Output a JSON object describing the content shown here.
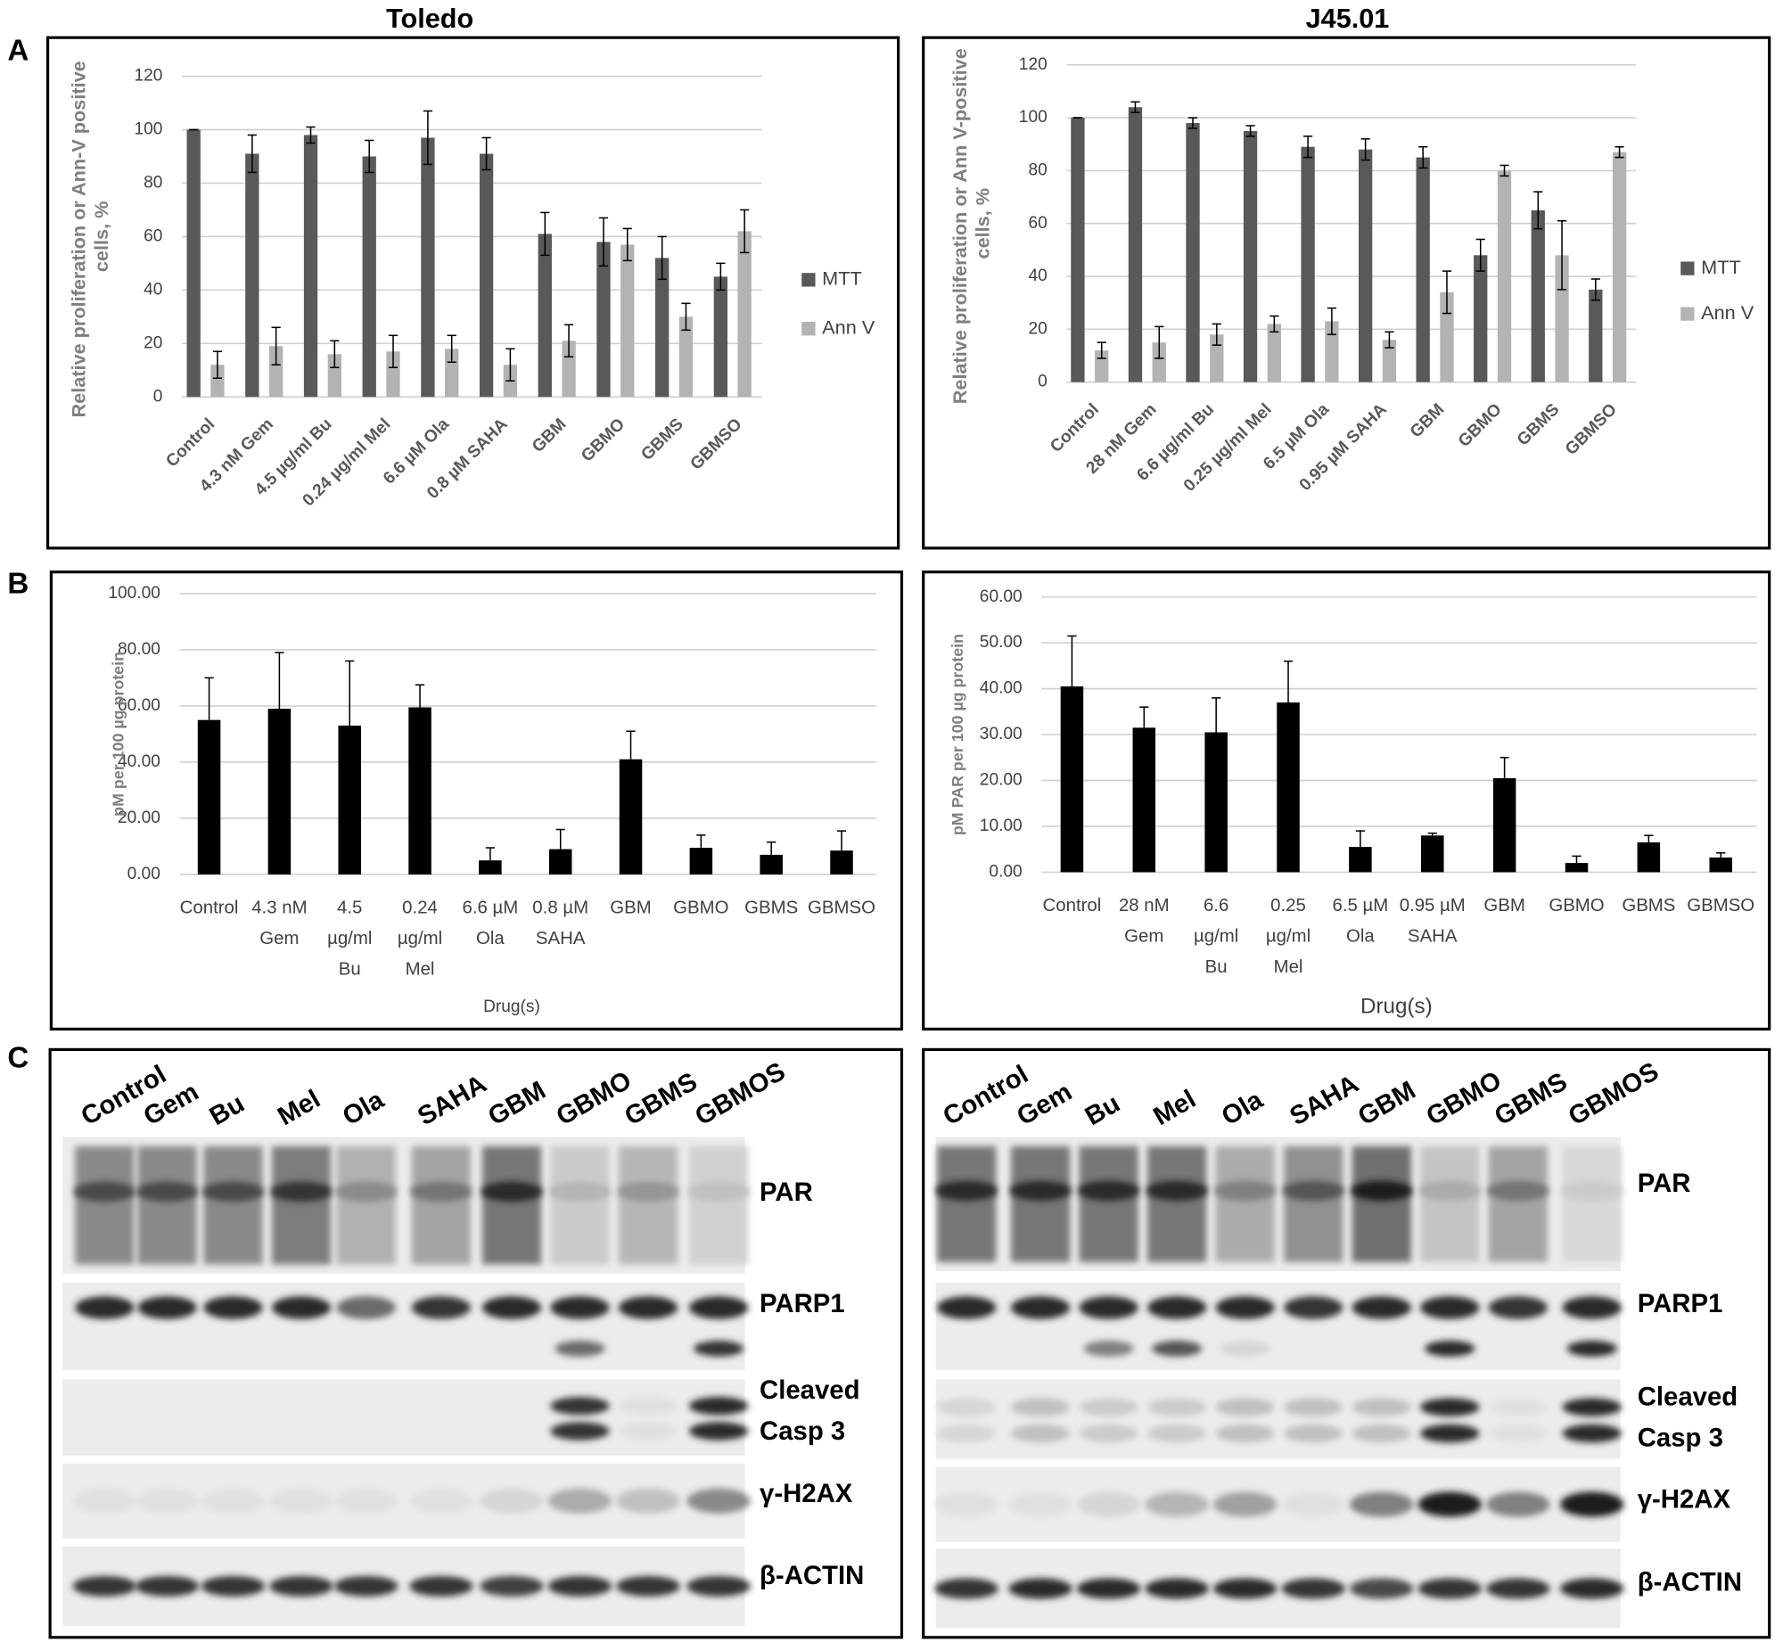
{
  "column_titles": [
    "Toledo",
    "J45.01"
  ],
  "panel_labels": [
    "A",
    "B",
    "C"
  ],
  "chart_data": [
    {
      "type": "bar",
      "y_label": "Relative proliferation or Ann-V positive cells, %",
      "categories": [
        "Control",
        "4.3 nM Gem",
        "4.5 µg/ml Bu",
        "0.24 µg/ml Mel",
        "6.6 µM Ola",
        "0.8 µM SAHA",
        "GBM",
        "GBMO",
        "GBMS",
        "GBMSO"
      ],
      "series": [
        {
          "name": "MTT",
          "color": "#595959",
          "values": [
            100,
            91,
            98,
            90,
            97,
            91,
            61,
            58,
            52,
            45
          ],
          "errors": [
            0,
            7,
            3,
            6,
            10,
            6,
            8,
            9,
            8,
            5
          ]
        },
        {
          "name": "Ann V",
          "color": "#b3b3b3",
          "values": [
            12,
            19,
            16,
            17,
            18,
            12,
            21,
            57,
            30,
            62
          ],
          "errors": [
            5,
            7,
            5,
            6,
            5,
            6,
            6,
            6,
            5,
            8
          ]
        }
      ],
      "error_bars": "both",
      "ylim": [
        0,
        120
      ],
      "yticks": [
        0,
        20,
        40,
        60,
        80,
        100,
        120
      ],
      "grid": true,
      "legend": "right"
    },
    {
      "type": "bar",
      "y_label": "Relative proliferation or Ann V-positive cells, %",
      "categories": [
        "Control",
        "28 nM Gem",
        "6.6 µg/ml Bu",
        "0.25 µg/ml Mel",
        "6.5 µM Ola",
        "0.95 µM SAHA",
        "GBM",
        "GBMO",
        "GBMS",
        "GBMSO"
      ],
      "series": [
        {
          "name": "MTT",
          "color": "#595959",
          "values": [
            100,
            104,
            98,
            95,
            89,
            88,
            85,
            48,
            65,
            35
          ],
          "errors": [
            0,
            2,
            2,
            2,
            4,
            4,
            4,
            6,
            7,
            4
          ]
        },
        {
          "name": "Ann V",
          "color": "#b3b3b3",
          "values": [
            12,
            15,
            18,
            22,
            23,
            16,
            34,
            80,
            48,
            87
          ],
          "errors": [
            3,
            6,
            4,
            3,
            5,
            3,
            8,
            2,
            13,
            2
          ]
        }
      ],
      "error_bars": "both",
      "ylim": [
        0,
        120
      ],
      "yticks": [
        0,
        20,
        40,
        60,
        80,
        100,
        120
      ],
      "grid": true,
      "legend": "right"
    },
    {
      "type": "bar",
      "y_label": "pM per 100 µg protein",
      "x_label": "Drug(s)",
      "categories": [
        [
          "Control"
        ],
        [
          "4.3 nM",
          "Gem"
        ],
        [
          "4.5",
          "µg/ml",
          "Bu"
        ],
        [
          "0.24",
          "µg/ml",
          "Mel"
        ],
        [
          "6.6 µM",
          "Ola"
        ],
        [
          "0.8 µM",
          "SAHA"
        ],
        [
          "GBM"
        ],
        [
          "GBMO"
        ],
        [
          "GBMS"
        ],
        [
          "GBMSO"
        ]
      ],
      "series": [
        {
          "color": "#000000",
          "values": [
            55,
            59,
            53,
            59.5,
            5,
            9,
            41,
            9.5,
            7,
            8.5
          ],
          "errors": [
            15,
            20,
            23,
            8,
            4.5,
            7,
            10,
            4.5,
            4.5,
            7
          ]
        }
      ],
      "error_bars": "up",
      "ylim": [
        0,
        100
      ],
      "yticks": [
        {
          "value": 0,
          "label": "0.00"
        },
        {
          "value": 20,
          "label": "20.00"
        },
        {
          "value": 40,
          "label": "40.00"
        },
        {
          "value": 60,
          "label": "60.00"
        },
        {
          "value": 80,
          "label": "80.00"
        },
        {
          "value": 100,
          "label": "100.00"
        }
      ],
      "grid": true
    },
    {
      "type": "bar",
      "y_label": "pM PAR per 100 µg protein",
      "x_label": "Drug(s)",
      "categories": [
        [
          "Control"
        ],
        [
          "28 nM",
          "Gem"
        ],
        [
          "6.6",
          "µg/ml",
          "Bu"
        ],
        [
          "0.25",
          "µg/ml",
          "Mel"
        ],
        [
          "6.5 µM",
          "Ola"
        ],
        [
          "0.95 µM",
          "SAHA"
        ],
        [
          "GBM"
        ],
        [
          "GBMO"
        ],
        [
          "GBMS"
        ],
        [
          "GBMSO"
        ]
      ],
      "series": [
        {
          "color": "#000000",
          "values": [
            40.5,
            31.5,
            30.5,
            37,
            5.5,
            8,
            20.5,
            2,
            6.5,
            3.2
          ],
          "errors": [
            11,
            4.5,
            7.5,
            9,
            3.5,
            0.5,
            4.5,
            1.5,
            1.5,
            1
          ]
        }
      ],
      "error_bars": "up",
      "ylim": [
        0,
        60
      ],
      "yticks": [
        {
          "value": 0,
          "label": "0.00"
        },
        {
          "value": 10,
          "label": "10.00"
        },
        {
          "value": 20,
          "label": "20.00"
        },
        {
          "value": 30,
          "label": "30.00"
        },
        {
          "value": 40,
          "label": "40.00"
        },
        {
          "value": 50,
          "label": "50.00"
        },
        {
          "value": 60,
          "label": "60.00"
        }
      ],
      "grid": true
    }
  ],
  "blots": [
    {
      "lanes": [
        "Control",
        "Gem",
        "Bu",
        "Mel",
        "Ola",
        "SAHA",
        "GBM",
        "GBMO",
        "GBMS",
        "GBMOS"
      ],
      "bands": [
        [
          "PAR"
        ],
        [
          "PARP1"
        ],
        [
          "Cleaved",
          "Casp 3"
        ],
        [
          "γ-H2AX"
        ],
        [
          "β-ACTIN"
        ]
      ]
    },
    {
      "lanes": [
        "Control",
        "Gem",
        "Bu",
        "Mel",
        "Ola",
        "SAHA",
        "GBM",
        "GBMO",
        "GBMS",
        "GBMOS"
      ],
      "bands": [
        [
          "PAR"
        ],
        [
          "PARP1"
        ],
        [
          "Cleaved",
          "Casp 3"
        ],
        [
          "γ-H2AX"
        ],
        [
          "β-ACTIN"
        ]
      ]
    }
  ]
}
